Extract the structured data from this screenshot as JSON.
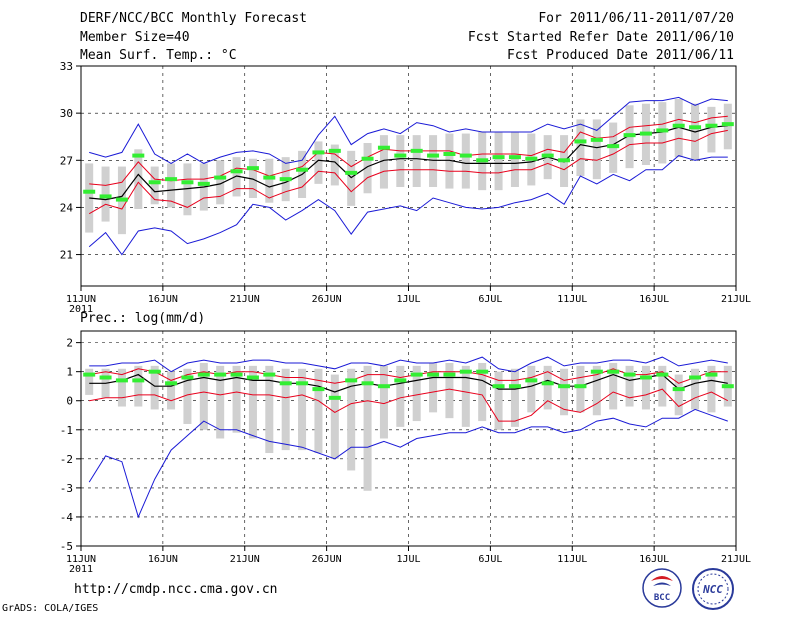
{
  "header": {
    "title": "DERF/NCC/BCC Monthly Forecast",
    "member_size": "Member Size=40",
    "variable": "Mean Surf. Temp.: °C",
    "period": "For 2011/06/11-2011/07/20",
    "fcst_started": "Fcst Started Refer Date 2011/06/10",
    "fcst_produced": "Fcst Produced Date 2011/06/11"
  },
  "footer": {
    "url": "http://cmdp.ncc.cma.gov.cn",
    "credit": "GrADS: COLA/IGES"
  },
  "logos": {
    "bcc": "BCC",
    "ncc": "NCC"
  },
  "colors": {
    "mean": "#000000",
    "spread": "#e8001c",
    "extreme": "#1a1ad6",
    "box": "#d0d0d0",
    "obs": "#33ee33"
  },
  "chart_data": [
    {
      "type": "line",
      "title": "Mean Surf. Temp.: °C",
      "year_label": "2011",
      "x_days": 40,
      "ylim": [
        19,
        33
      ],
      "yticks": [
        21,
        24,
        27,
        30,
        33
      ],
      "xticks": [
        {
          "day": 0,
          "label": "11JUN"
        },
        {
          "day": 5,
          "label": "16JUN"
        },
        {
          "day": 10,
          "label": "21JUN"
        },
        {
          "day": 15,
          "label": "26JUN"
        },
        {
          "day": 20,
          "label": "1JUL"
        },
        {
          "day": 25,
          "label": "6JUL"
        },
        {
          "day": 30,
          "label": "11JUL"
        },
        {
          "day": 35,
          "label": "16JUL"
        },
        {
          "day": 40,
          "label": "21JUL"
        }
      ],
      "series": [
        {
          "name": "max",
          "values": [
            27.5,
            27.2,
            27.5,
            29.3,
            27.4,
            26.8,
            27.4,
            26.8,
            27.2,
            27.5,
            27.6,
            27.4,
            26.8,
            27.0,
            28.6,
            29.8,
            28.0,
            28.7,
            29.0,
            28.7,
            29.4,
            29.2,
            28.8,
            29.0,
            28.8,
            28.8,
            28.8,
            28.8,
            29.3,
            29.0,
            29.3,
            28.9,
            29.8,
            30.7,
            30.8,
            30.8,
            31.0,
            30.5,
            30.9,
            30.8
          ]
        },
        {
          "name": "upper",
          "values": [
            25.5,
            25.4,
            25.6,
            26.9,
            25.8,
            25.7,
            25.8,
            25.8,
            26.0,
            26.5,
            26.4,
            26.0,
            26.3,
            26.6,
            27.5,
            27.4,
            26.6,
            27.2,
            27.7,
            27.6,
            27.6,
            27.6,
            27.6,
            27.3,
            27.4,
            27.4,
            27.4,
            27.3,
            27.7,
            27.5,
            28.8,
            28.4,
            28.5,
            29.1,
            29.2,
            29.3,
            29.6,
            29.4,
            29.7,
            29.8
          ]
        },
        {
          "name": "mean",
          "values": [
            24.6,
            24.5,
            24.7,
            26.1,
            25.0,
            25.1,
            25.2,
            25.3,
            25.5,
            26.0,
            25.8,
            25.3,
            25.6,
            26.1,
            27.0,
            26.9,
            25.9,
            26.6,
            27.0,
            27.1,
            27.1,
            27.0,
            27.0,
            26.8,
            26.8,
            26.8,
            26.8,
            26.9,
            27.2,
            26.9,
            28.0,
            27.8,
            28.0,
            28.6,
            28.7,
            28.8,
            29.1,
            28.8,
            29.1,
            29.2
          ]
        },
        {
          "name": "lower",
          "values": [
            23.6,
            24.2,
            23.9,
            25.6,
            24.5,
            24.4,
            24.0,
            24.6,
            24.7,
            25.2,
            25.2,
            24.6,
            25.0,
            25.3,
            26.3,
            26.2,
            25.0,
            25.9,
            26.3,
            26.4,
            26.4,
            26.4,
            26.3,
            26.3,
            26.2,
            26.2,
            26.4,
            26.4,
            26.8,
            26.4,
            27.1,
            27.0,
            27.4,
            28.0,
            28.1,
            28.1,
            28.4,
            28.2,
            28.7,
            28.9
          ]
        },
        {
          "name": "min",
          "values": [
            21.5,
            22.4,
            21.0,
            22.5,
            22.7,
            22.5,
            21.7,
            22.0,
            22.4,
            22.9,
            24.2,
            24.0,
            23.2,
            23.8,
            24.5,
            23.8,
            22.3,
            23.7,
            23.9,
            24.1,
            23.8,
            24.6,
            24.3,
            24.0,
            23.9,
            24.0,
            24.3,
            24.5,
            24.9,
            24.2,
            26.0,
            25.5,
            26.1,
            25.7,
            26.4,
            26.4,
            27.3,
            27.0,
            27.2,
            27.2
          ]
        },
        {
          "name": "box_top",
          "values": [
            26.8,
            26.6,
            26.6,
            27.7,
            26.6,
            26.8,
            26.8,
            26.8,
            27.0,
            27.2,
            27.1,
            27.1,
            27.2,
            27.6,
            28.2,
            28.0,
            27.6,
            28.1,
            28.6,
            28.6,
            28.6,
            28.6,
            28.7,
            28.7,
            28.8,
            28.8,
            28.8,
            28.7,
            28.6,
            28.6,
            29.6,
            29.6,
            29.4,
            30.5,
            30.6,
            30.7,
            30.9,
            30.6,
            30.4,
            30.6
          ]
        },
        {
          "name": "box_bottom",
          "values": [
            22.4,
            23.1,
            22.3,
            23.9,
            24.2,
            24.0,
            23.5,
            23.8,
            24.2,
            24.7,
            24.6,
            24.3,
            24.4,
            24.6,
            25.5,
            25.4,
            24.1,
            24.9,
            25.2,
            25.3,
            25.3,
            25.3,
            25.2,
            25.2,
            25.1,
            25.1,
            25.3,
            25.4,
            25.8,
            25.3,
            26.0,
            25.8,
            26.2,
            26.5,
            26.7,
            26.8,
            27.2,
            27.0,
            27.5,
            27.7
          ]
        },
        {
          "name": "observed",
          "values": [
            25.0,
            24.7,
            24.5,
            27.3,
            25.6,
            25.8,
            25.6,
            25.5,
            25.9,
            26.3,
            26.5,
            25.9,
            25.8,
            26.4,
            27.5,
            27.6,
            26.2,
            27.1,
            27.8,
            27.3,
            27.6,
            27.3,
            27.4,
            27.3,
            27.0,
            27.2,
            27.2,
            27.1,
            27.3,
            27.0,
            28.2,
            28.3,
            27.9,
            28.6,
            28.7,
            28.9,
            29.2,
            29.1,
            29.2,
            29.3
          ]
        }
      ]
    },
    {
      "type": "line",
      "title": "Prec.: log(mm/d)",
      "year_label": "2011",
      "x_days": 40,
      "ylim": [
        -5,
        2.4
      ],
      "yticks": [
        -5,
        -4,
        -3,
        -2,
        -1,
        0,
        1,
        2
      ],
      "xticks": [
        {
          "day": 0,
          "label": "11JUN"
        },
        {
          "day": 5,
          "label": "16JUN"
        },
        {
          "day": 10,
          "label": "21JUN"
        },
        {
          "day": 15,
          "label": "26JUN"
        },
        {
          "day": 20,
          "label": "1JUL"
        },
        {
          "day": 25,
          "label": "6JUL"
        },
        {
          "day": 30,
          "label": "11JUL"
        },
        {
          "day": 35,
          "label": "16JUL"
        },
        {
          "day": 40,
          "label": "21JUL"
        }
      ],
      "series": [
        {
          "name": "max",
          "values": [
            1.2,
            1.2,
            1.3,
            1.3,
            1.4,
            1.0,
            1.3,
            1.4,
            1.3,
            1.3,
            1.4,
            1.4,
            1.3,
            1.3,
            1.2,
            1.1,
            1.3,
            1.3,
            1.2,
            1.4,
            1.3,
            1.3,
            1.4,
            1.3,
            1.5,
            1.1,
            1.0,
            1.3,
            1.5,
            1.2,
            1.3,
            1.3,
            1.4,
            1.4,
            1.3,
            1.5,
            1.2,
            1.3,
            1.4,
            1.3
          ]
        },
        {
          "name": "upper",
          "values": [
            0.9,
            1.0,
            0.9,
            1.1,
            1.0,
            0.7,
            0.9,
            1.0,
            0.9,
            1.0,
            1.0,
            0.9,
            0.8,
            0.8,
            0.7,
            0.6,
            0.7,
            0.9,
            0.9,
            0.8,
            0.9,
            1.0,
            1.0,
            1.0,
            0.9,
            0.7,
            0.7,
            0.8,
            1.0,
            0.7,
            0.8,
            0.9,
            1.1,
            0.9,
            0.9,
            1.0,
            0.6,
            0.8,
            1.0,
            1.0
          ]
        },
        {
          "name": "mean",
          "values": [
            0.6,
            0.6,
            0.7,
            0.9,
            0.5,
            0.5,
            0.7,
            0.8,
            0.7,
            0.8,
            0.7,
            0.7,
            0.6,
            0.6,
            0.5,
            0.3,
            0.5,
            0.6,
            0.5,
            0.6,
            0.7,
            0.8,
            0.8,
            0.8,
            0.7,
            0.4,
            0.4,
            0.5,
            0.7,
            0.5,
            0.5,
            0.7,
            0.9,
            0.7,
            0.8,
            0.9,
            0.4,
            0.6,
            0.7,
            0.6
          ]
        },
        {
          "name": "lower",
          "values": [
            0.0,
            0.1,
            0.1,
            0.2,
            0.2,
            0.0,
            0.2,
            0.3,
            0.2,
            0.3,
            0.2,
            0.2,
            0.1,
            0.2,
            0.0,
            -0.4,
            -0.1,
            0.0,
            -0.1,
            0.1,
            0.2,
            0.3,
            0.4,
            0.3,
            0.2,
            -0.7,
            -0.7,
            -0.5,
            0.0,
            -0.3,
            -0.4,
            -0.1,
            0.3,
            0.1,
            0.2,
            0.4,
            -0.2,
            0.1,
            0.3,
            0.0
          ]
        },
        {
          "name": "min",
          "values": [
            -2.8,
            -1.9,
            -2.1,
            -4.0,
            -2.7,
            -1.7,
            -1.2,
            -0.7,
            -1.0,
            -1.0,
            -1.2,
            -1.4,
            -1.5,
            -1.6,
            -1.8,
            -2.0,
            -1.6,
            -1.6,
            -1.4,
            -1.6,
            -1.3,
            -1.2,
            -1.1,
            -1.1,
            -0.9,
            -1.1,
            -1.1,
            -0.9,
            -0.9,
            -1.1,
            -1.0,
            -0.7,
            -0.6,
            -0.8,
            -0.9,
            -0.6,
            -0.6,
            -0.3,
            -0.5,
            -0.7
          ]
        },
        {
          "name": "box_top",
          "values": [
            1.1,
            1.1,
            1.1,
            1.2,
            1.2,
            1.0,
            1.1,
            1.3,
            1.2,
            1.2,
            1.2,
            1.2,
            1.1,
            1.1,
            1.1,
            0.9,
            1.1,
            1.2,
            1.2,
            1.2,
            1.2,
            1.3,
            1.3,
            1.2,
            1.3,
            1.0,
            1.1,
            1.2,
            1.2,
            1.1,
            1.2,
            1.2,
            1.3,
            1.2,
            1.2,
            1.2,
            0.9,
            1.1,
            1.2,
            1.2
          ]
        },
        {
          "name": "box_bottom",
          "values": [
            0.2,
            0.1,
            -0.2,
            -0.2,
            -0.3,
            -0.3,
            -0.8,
            -1.0,
            -1.3,
            -1.1,
            -1.3,
            -1.8,
            -1.7,
            -1.7,
            -1.8,
            -2.0,
            -2.4,
            -3.1,
            -1.3,
            -0.9,
            -0.7,
            -0.4,
            -0.6,
            -0.9,
            -0.7,
            -1.0,
            -0.9,
            -0.4,
            -0.3,
            -0.5,
            -0.4,
            -0.5,
            -0.3,
            -0.2,
            -0.3,
            -0.2,
            -0.5,
            -0.3,
            -0.4,
            -0.2
          ]
        },
        {
          "name": "observed",
          "values": [
            0.9,
            0.8,
            0.7,
            0.7,
            1.0,
            0.6,
            0.8,
            0.9,
            0.9,
            0.9,
            0.8,
            0.9,
            0.6,
            0.6,
            0.4,
            0.1,
            0.7,
            0.6,
            0.5,
            0.7,
            0.9,
            0.9,
            0.9,
            1.0,
            1.0,
            0.5,
            0.5,
            0.7,
            0.6,
            0.5,
            0.5,
            1.0,
            1.0,
            0.9,
            0.8,
            0.9,
            0.4,
            0.8,
            0.9,
            0.5
          ]
        }
      ]
    }
  ]
}
